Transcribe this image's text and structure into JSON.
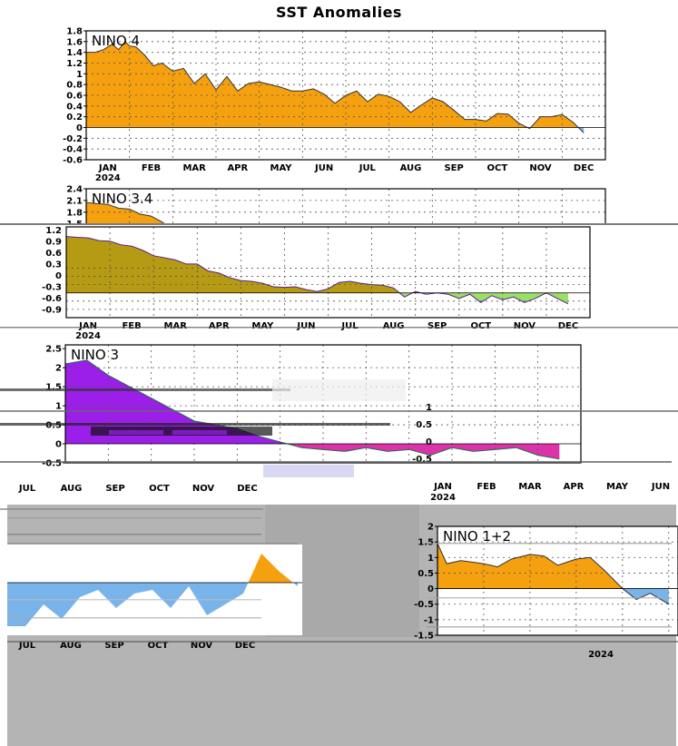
{
  "title": "SST Anomalies",
  "chart_data": [
    {
      "type": "area",
      "label": "NINO 4",
      "xtick_labels": [
        "JAN",
        "FEB",
        "MAR",
        "APR",
        "MAY",
        "JUN",
        "JUL",
        "AUG",
        "SEP",
        "OCT",
        "NOV",
        "DEC"
      ],
      "year_label": "2024",
      "ytick_labels": [
        "1.8",
        "1.6",
        "1.4",
        "1.2",
        "1",
        "0.8",
        "0.6",
        "0.4",
        "0.2",
        "0",
        "-0.2",
        "-0.4",
        "-0.6"
      ],
      "ylim": [
        -0.6,
        1.8
      ],
      "x_month": [
        0,
        0.2,
        0.4,
        0.6,
        0.75,
        0.9,
        1.0,
        1.15,
        1.35,
        1.55,
        1.75,
        2.0,
        2.25,
        2.5,
        2.75,
        3.0,
        3.25,
        3.5,
        3.75,
        4.0,
        4.25,
        4.5,
        4.75,
        5.0,
        5.25,
        5.5,
        5.75,
        6.0,
        6.25,
        6.5,
        6.75,
        7.0,
        7.25,
        7.5,
        7.75,
        8.0,
        8.25,
        8.5,
        8.75,
        9.0,
        9.25,
        9.5,
        9.75,
        10.0,
        10.25,
        10.5,
        10.75,
        11.0,
        11.25,
        11.5
      ],
      "values": [
        1.4,
        1.4,
        1.45,
        1.55,
        1.45,
        1.6,
        1.52,
        1.5,
        1.35,
        1.15,
        1.2,
        1.05,
        1.1,
        0.82,
        1.0,
        0.7,
        0.95,
        0.68,
        0.82,
        0.85,
        0.8,
        0.75,
        0.68,
        0.68,
        0.72,
        0.62,
        0.45,
        0.6,
        0.68,
        0.48,
        0.62,
        0.58,
        0.48,
        0.28,
        0.42,
        0.55,
        0.48,
        0.32,
        0.15,
        0.15,
        0.12,
        0.26,
        0.25,
        0.08,
        -0.02,
        0.2,
        0.2,
        0.24,
        0.1,
        -0.1
      ]
    },
    {
      "type": "area",
      "label": "NINO 3.4",
      "xtick_labels": [
        "JAN",
        "FEB",
        "MAR",
        "APR",
        "MAY",
        "JUN",
        "JUL",
        "AUG",
        "SEP",
        "OCT",
        "NOV",
        "DEC"
      ],
      "year_label": "2024",
      "ytick_labels": [
        "2.4",
        "2.1",
        "1.8",
        "1.5",
        "1.2",
        "0.9",
        "0.6",
        "0.3",
        "0",
        "-0.3",
        "-0.6",
        "-0.9"
      ],
      "ylim": [
        -0.9,
        2.4
      ],
      "x_month": [
        0,
        0.25,
        0.5,
        0.75,
        1.0,
        1.25,
        1.5,
        1.75,
        2.0,
        2.25,
        2.5,
        2.75,
        3.0,
        3.25,
        3.5,
        3.75,
        4.0,
        4.25,
        4.5,
        4.75,
        5.0,
        5.25,
        5.5,
        5.75,
        6.0,
        6.25,
        6.5,
        6.75,
        7.0,
        7.25,
        7.5,
        7.75,
        8.0,
        8.25,
        8.5,
        8.75,
        9.0,
        9.25,
        9.5,
        9.75,
        10.0,
        10.25,
        10.5,
        10.75,
        11.0,
        11.25,
        11.5
      ],
      "values": [
        2.05,
        2.02,
        2.0,
        1.9,
        1.88,
        1.75,
        1.7,
        1.55,
        1.35,
        1.28,
        1.2,
        1.05,
        1.05,
        0.8,
        0.72,
        0.55,
        0.45,
        0.42,
        0.35,
        0.22,
        0.2,
        0.22,
        0.12,
        0.05,
        0.15,
        0.38,
        0.42,
        0.35,
        0.3,
        0.28,
        0.18,
        -0.15,
        0.05,
        -0.05,
        0.0,
        -0.05,
        -0.2,
        -0.05,
        -0.35,
        -0.1,
        -0.25,
        -0.15,
        -0.35,
        -0.2,
        0.0,
        -0.2,
        -0.4
      ]
    },
    {
      "type": "area",
      "label": "NINO 3",
      "xtick_labels": [
        "JAN",
        "FEB",
        "MAR",
        "APR",
        "MAY",
        "JUN",
        "JUL",
        "AUG",
        "SEP",
        "OCT",
        "NOV",
        "DEC"
      ],
      "year_label": "2024",
      "ytick_labels": [
        "2.5",
        "2",
        "1.5",
        "1",
        "0.5",
        "0",
        "-0.5"
      ],
      "ylim": [
        -0.5,
        2.6
      ],
      "x_month": [
        0,
        0.5,
        1.0,
        1.5,
        2.0,
        2.5,
        3.0,
        3.5,
        4.0,
        4.5,
        5.0,
        5.5,
        6.0,
        6.5,
        7.0,
        7.5,
        8.0,
        8.5,
        9.0,
        9.5,
        10.0,
        10.5,
        11.0,
        11.5
      ],
      "values": [
        2.1,
        2.2,
        1.8,
        1.5,
        1.2,
        0.9,
        0.6,
        0.5,
        0.4,
        0.2,
        0.05,
        -0.1,
        -0.15,
        -0.2,
        -0.1,
        -0.2,
        -0.15,
        -0.3,
        -0.1,
        -0.2,
        -0.15,
        -0.1,
        -0.3,
        -0.4
      ]
    },
    {
      "type": "area",
      "label": "NINO 1+2",
      "xtick_labels": [
        "JAN",
        "FEB",
        "MAR",
        "APR",
        "MAY",
        "JUN",
        "JUL",
        "AUG",
        "SEP",
        "OCT",
        "NOV",
        "DEC"
      ],
      "year_label": "2024",
      "ytick_labels": [
        "2",
        "1.5",
        "1",
        "0.5",
        "0",
        "-0.5",
        "-1",
        "-1.5"
      ],
      "ylim": [
        -1.5,
        2.0
      ],
      "x_month": [
        0,
        0.2,
        0.5,
        0.75,
        1.0,
        1.3,
        1.6,
        2.0,
        2.3,
        2.6,
        3.0,
        3.3,
        3.6,
        4.0,
        4.3,
        4.6,
        5.0
      ],
      "values": [
        1.45,
        0.8,
        0.9,
        0.85,
        0.8,
        0.7,
        0.95,
        1.1,
        1.05,
        0.75,
        0.95,
        1.0,
        0.6,
        0.0,
        -0.35,
        -0.15,
        -0.5
      ]
    }
  ],
  "partial_text": {
    "nino3_right_ticks": [
      "1",
      "0.5",
      "0",
      "-0.5"
    ],
    "nino3_right_months": [
      "JAN",
      "FEB",
      "MAR",
      "APR",
      "MAY",
      "JUN"
    ],
    "nino3_left_months": [
      "JUL",
      "AUG",
      "SEP",
      "OCT",
      "NOV",
      "DEC"
    ],
    "nino12_left_months": [
      "JUL",
      "AUG",
      "SEP",
      "OCT",
      "NOV",
      "DEC"
    ],
    "overlap_ticks": [
      "1.2",
      "0.9",
      "0.6",
      "0.3",
      "0",
      "-0.3",
      "-0.6",
      "-0.9"
    ]
  },
  "colors": {
    "positive": "#f5a00f",
    "negative": "#78b4ea",
    "green": "#99e066",
    "olive": "#b59a14",
    "magenta": "#dd33aa",
    "purple": "#9b1fe8",
    "gray": "#b4b4b4"
  }
}
